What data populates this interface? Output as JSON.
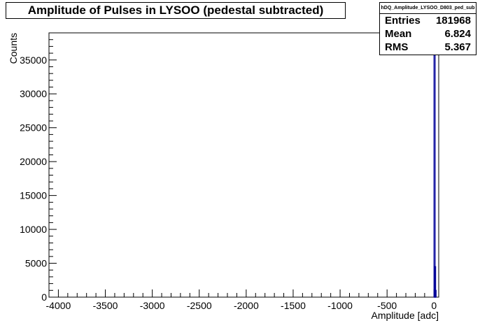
{
  "title": "Amplitude of Pulses in LYSOO (pedestal subtracted)",
  "stats": {
    "name": "hDQ_Amplitude_LYSOO_D803_ped_sub",
    "entries_label": "Entries",
    "entries": "181968",
    "mean_label": "Mean",
    "mean": "6.824",
    "rms_label": "RMS",
    "rms": "5.367"
  },
  "chart_data": {
    "type": "bar",
    "title": "Amplitude of Pulses in LYSOO (pedestal subtracted)",
    "xlabel": "Amplitude [adc]",
    "ylabel": "Counts",
    "xlim": [
      -4100,
      50
    ],
    "ylim": [
      0,
      39000
    ],
    "x_ticks": [
      -4000,
      -3500,
      -3000,
      -2500,
      -2000,
      -1500,
      -1000,
      -500,
      0
    ],
    "y_ticks": [
      0,
      5000,
      10000,
      15000,
      20000,
      25000,
      30000,
      35000
    ],
    "bins": [
      {
        "x": -5,
        "y": 0
      },
      {
        "x": 0,
        "y": 39000
      },
      {
        "x": 5,
        "y": 4500
      },
      {
        "x": 10,
        "y": 1000
      }
    ],
    "colors": {
      "line": "#000099"
    }
  }
}
